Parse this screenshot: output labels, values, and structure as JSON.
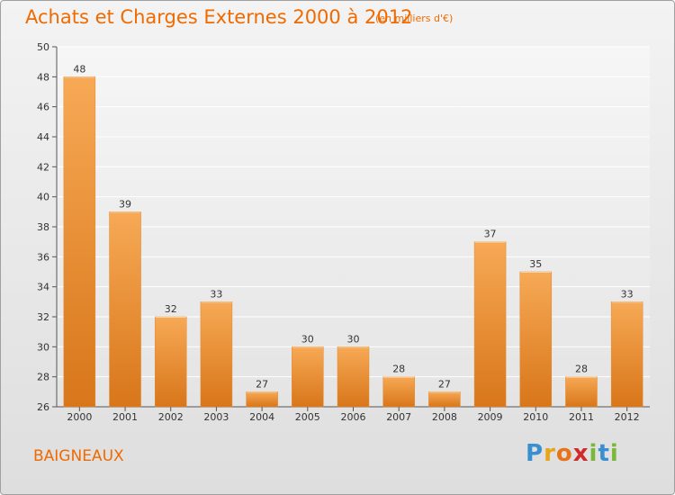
{
  "title": "Achats et Charges Externes 2000 à 2012",
  "subtitle": "(en milliers d'€)",
  "commune": "BAIGNEAUX",
  "logo": {
    "letters": [
      "P",
      "r",
      "o",
      "x",
      "i",
      "t",
      "i"
    ],
    "colors": [
      "#3a8fd0",
      "#e8a41a",
      "#e8741a",
      "#d02a2a",
      "#7ab83a",
      "#3a8fd0",
      "#7ab83a"
    ]
  },
  "colors": {
    "title": "#ef6a00",
    "bar_light": "#f7a955",
    "bar_dark": "#d8761a"
  },
  "chart_data": {
    "type": "bar",
    "categories": [
      "2000",
      "2001",
      "2002",
      "2003",
      "2004",
      "2005",
      "2006",
      "2007",
      "2008",
      "2009",
      "2010",
      "2011",
      "2012"
    ],
    "values": [
      48,
      39,
      32,
      33,
      27,
      30,
      30,
      28,
      27,
      37,
      35,
      28,
      33
    ],
    "ylim": [
      26,
      50
    ],
    "yticks": [
      26,
      28,
      30,
      32,
      34,
      36,
      38,
      40,
      42,
      44,
      46,
      48,
      50
    ],
    "grid": true
  }
}
